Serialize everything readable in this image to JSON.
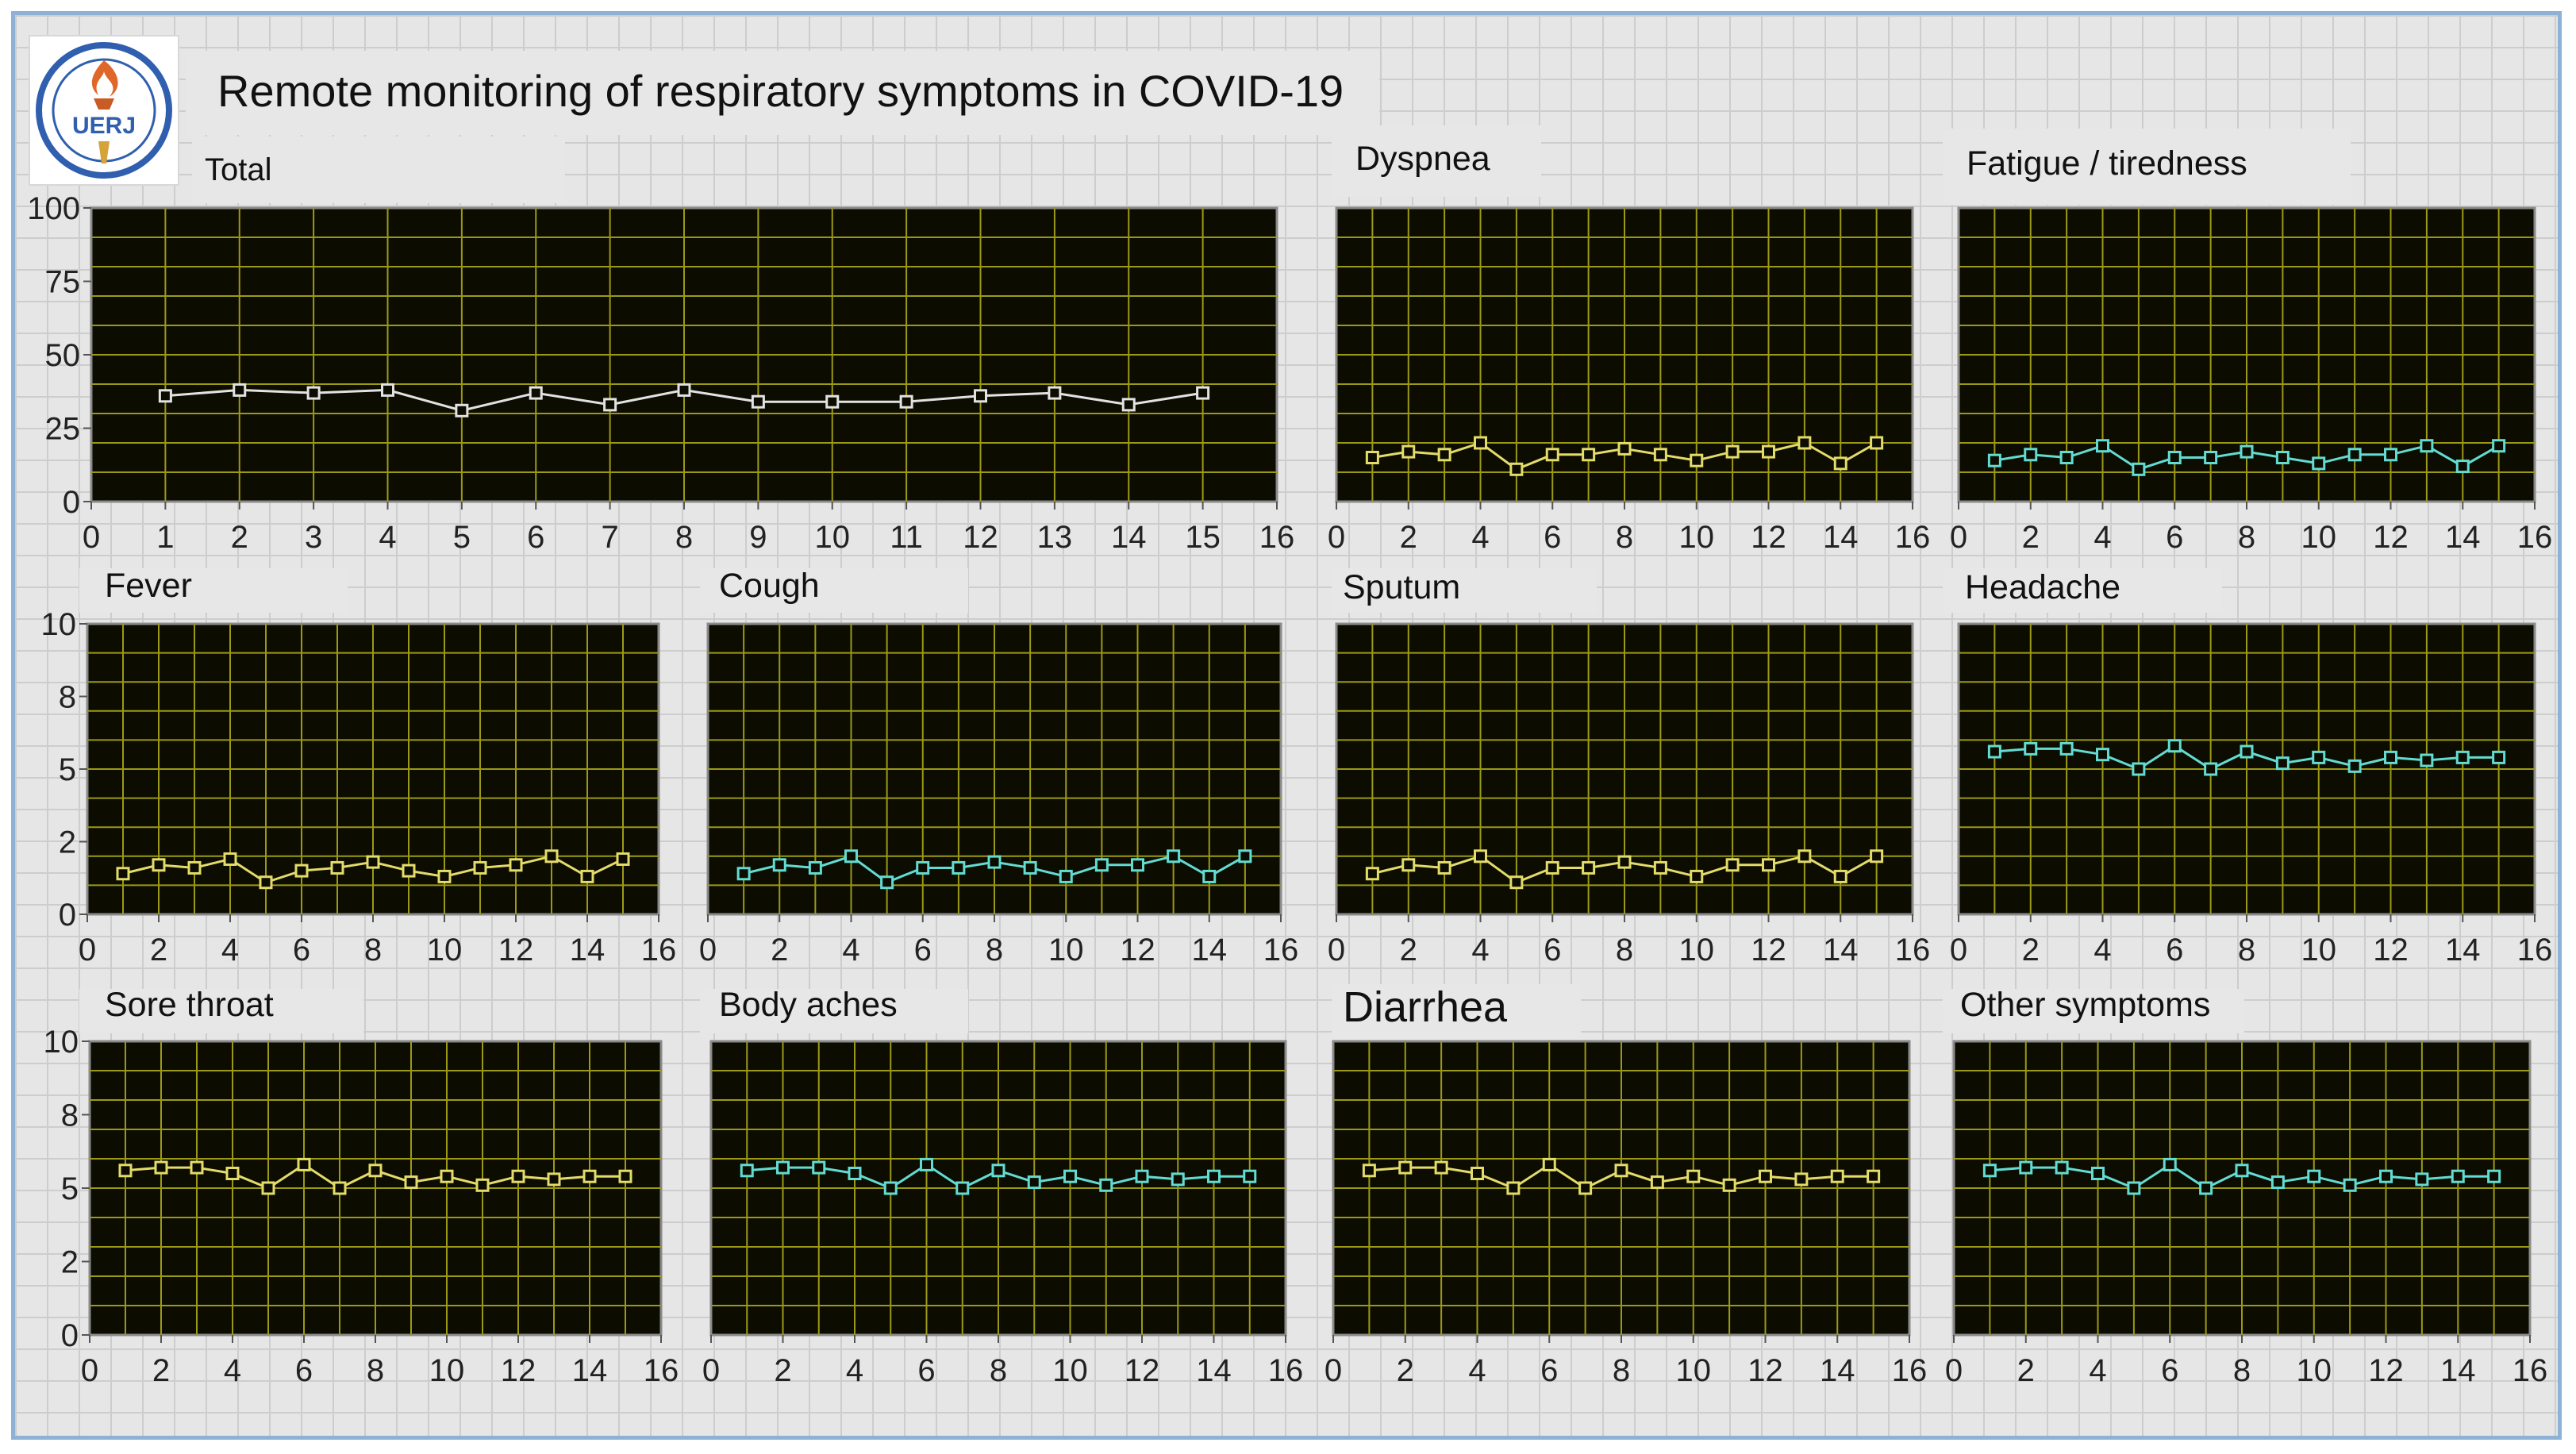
{
  "app": {
    "title": "Remote monitoring of respiratory symptoms in COVID-19"
  },
  "logo": {
    "text": "UERJ"
  },
  "colors": {
    "plot_bg": "#0c0c00",
    "grid": "#9c9a15",
    "frame": "#8a8a8a",
    "white_series": "#e2e2e2",
    "yellow_series": "#e3db6a",
    "cyan_series": "#62dcd2"
  },
  "chart_data": [
    {
      "type": "line",
      "title": "Total",
      "color": "white",
      "x": [
        1,
        2,
        3,
        4,
        5,
        6,
        7,
        8,
        9,
        10,
        11,
        12,
        13,
        14,
        15
      ],
      "values": [
        36,
        38,
        37,
        38,
        31,
        37,
        33,
        38,
        34,
        34,
        34,
        36,
        37,
        33,
        37
      ],
      "xlim": [
        0,
        16
      ],
      "ylim": [
        0,
        100
      ],
      "xticks": [
        "0",
        "1",
        "2",
        "3",
        "4",
        "5",
        "6",
        "7",
        "8",
        "9",
        "10",
        "11",
        "12",
        "13",
        "14",
        "15",
        "16"
      ],
      "yticks": [
        "100",
        "75",
        "50",
        "25",
        "0"
      ]
    },
    {
      "type": "line",
      "title": "Dyspnea",
      "color": "yellow",
      "x": [
        1,
        2,
        3,
        4,
        5,
        6,
        7,
        8,
        9,
        10,
        11,
        12,
        13,
        14,
        15
      ],
      "values": [
        15,
        17,
        16,
        20,
        11,
        16,
        16,
        18,
        16,
        14,
        17,
        17,
        20,
        13,
        20
      ],
      "xlim": [
        0,
        16
      ],
      "ylim": [
        0,
        100
      ],
      "xticks": [
        "0",
        "2",
        "4",
        "6",
        "8",
        "10",
        "12",
        "14",
        "16"
      ],
      "yticks": []
    },
    {
      "type": "line",
      "title": "Fatigue / tiredness",
      "color": "cyan",
      "x": [
        1,
        2,
        3,
        4,
        5,
        6,
        7,
        8,
        9,
        10,
        11,
        12,
        13,
        14,
        15
      ],
      "values": [
        14,
        16,
        15,
        19,
        11,
        15,
        15,
        17,
        15,
        13,
        16,
        16,
        19,
        12,
        19
      ],
      "xlim": [
        0,
        16
      ],
      "ylim": [
        0,
        100
      ],
      "xticks": [
        "0",
        "2",
        "4",
        "6",
        "8",
        "10",
        "12",
        "14",
        "16"
      ],
      "yticks": []
    },
    {
      "type": "line",
      "title": "Fever",
      "color": "yellow",
      "x": [
        1,
        2,
        3,
        4,
        5,
        6,
        7,
        8,
        9,
        10,
        11,
        12,
        13,
        14,
        15
      ],
      "values": [
        1.4,
        1.7,
        1.6,
        1.9,
        1.1,
        1.5,
        1.6,
        1.8,
        1.5,
        1.3,
        1.6,
        1.7,
        2.0,
        1.3,
        1.9
      ],
      "xlim": [
        0,
        16
      ],
      "ylim": [
        0,
        10
      ],
      "xticks": [
        "0",
        "2",
        "4",
        "6",
        "8",
        "10",
        "12",
        "14",
        "16"
      ],
      "yticks": [
        "10",
        "8",
        "5",
        "2",
        "0"
      ]
    },
    {
      "type": "line",
      "title": "Cough",
      "color": "cyan",
      "x": [
        1,
        2,
        3,
        4,
        5,
        6,
        7,
        8,
        9,
        10,
        11,
        12,
        13,
        14,
        15
      ],
      "values": [
        1.4,
        1.7,
        1.6,
        2.0,
        1.1,
        1.6,
        1.6,
        1.8,
        1.6,
        1.3,
        1.7,
        1.7,
        2.0,
        1.3,
        2.0
      ],
      "xlim": [
        0,
        16
      ],
      "ylim": [
        0,
        10
      ],
      "xticks": [
        "0",
        "2",
        "4",
        "6",
        "8",
        "10",
        "12",
        "14",
        "16"
      ],
      "yticks": []
    },
    {
      "type": "line",
      "title": "Sputum",
      "color": "yellow",
      "x": [
        1,
        2,
        3,
        4,
        5,
        6,
        7,
        8,
        9,
        10,
        11,
        12,
        13,
        14,
        15
      ],
      "values": [
        1.4,
        1.7,
        1.6,
        2.0,
        1.1,
        1.6,
        1.6,
        1.8,
        1.6,
        1.3,
        1.7,
        1.7,
        2.0,
        1.3,
        2.0
      ],
      "xlim": [
        0,
        16
      ],
      "ylim": [
        0,
        10
      ],
      "xticks": [
        "0",
        "2",
        "4",
        "6",
        "8",
        "10",
        "12",
        "14",
        "16"
      ],
      "yticks": []
    },
    {
      "type": "line",
      "title": "Headache",
      "color": "cyan",
      "x": [
        1,
        2,
        3,
        4,
        5,
        6,
        7,
        8,
        9,
        10,
        11,
        12,
        13,
        14,
        15
      ],
      "values": [
        5.6,
        5.7,
        5.7,
        5.5,
        5.0,
        5.8,
        5.0,
        5.6,
        5.2,
        5.4,
        5.1,
        5.4,
        5.3,
        5.4,
        5.4
      ],
      "xlim": [
        0,
        16
      ],
      "ylim": [
        0,
        10
      ],
      "xticks": [
        "0",
        "2",
        "4",
        "6",
        "8",
        "10",
        "12",
        "14",
        "16"
      ],
      "yticks": []
    },
    {
      "type": "line",
      "title": "Sore throat",
      "color": "yellow",
      "x": [
        1,
        2,
        3,
        4,
        5,
        6,
        7,
        8,
        9,
        10,
        11,
        12,
        13,
        14,
        15
      ],
      "values": [
        5.6,
        5.7,
        5.7,
        5.5,
        5.0,
        5.8,
        5.0,
        5.6,
        5.2,
        5.4,
        5.1,
        5.4,
        5.3,
        5.4,
        5.4
      ],
      "xlim": [
        0,
        16
      ],
      "ylim": [
        0,
        10
      ],
      "xticks": [
        "0",
        "2",
        "4",
        "6",
        "8",
        "10",
        "12",
        "14",
        "16"
      ],
      "yticks": [
        "10",
        "8",
        "5",
        "2",
        "0"
      ]
    },
    {
      "type": "line",
      "title": "Body aches",
      "color": "cyan",
      "x": [
        1,
        2,
        3,
        4,
        5,
        6,
        7,
        8,
        9,
        10,
        11,
        12,
        13,
        14,
        15
      ],
      "values": [
        5.6,
        5.7,
        5.7,
        5.5,
        5.0,
        5.8,
        5.0,
        5.6,
        5.2,
        5.4,
        5.1,
        5.4,
        5.3,
        5.4,
        5.4
      ],
      "xlim": [
        0,
        16
      ],
      "ylim": [
        0,
        10
      ],
      "xticks": [
        "0",
        "2",
        "4",
        "6",
        "8",
        "10",
        "12",
        "14",
        "16"
      ],
      "yticks": []
    },
    {
      "type": "line",
      "title": "Diarrhea",
      "color": "yellow",
      "x": [
        1,
        2,
        3,
        4,
        5,
        6,
        7,
        8,
        9,
        10,
        11,
        12,
        13,
        14,
        15
      ],
      "values": [
        5.6,
        5.7,
        5.7,
        5.5,
        5.0,
        5.8,
        5.0,
        5.6,
        5.2,
        5.4,
        5.1,
        5.4,
        5.3,
        5.4,
        5.4
      ],
      "xlim": [
        0,
        16
      ],
      "ylim": [
        0,
        10
      ],
      "xticks": [
        "0",
        "2",
        "4",
        "6",
        "8",
        "10",
        "12",
        "14",
        "16"
      ],
      "yticks": []
    },
    {
      "type": "line",
      "title": "Other symptoms",
      "color": "cyan",
      "x": [
        1,
        2,
        3,
        4,
        5,
        6,
        7,
        8,
        9,
        10,
        11,
        12,
        13,
        14,
        15
      ],
      "values": [
        5.6,
        5.7,
        5.7,
        5.5,
        5.0,
        5.8,
        5.0,
        5.6,
        5.2,
        5.4,
        5.1,
        5.4,
        5.3,
        5.4,
        5.4
      ],
      "xlim": [
        0,
        16
      ],
      "ylim": [
        0,
        10
      ],
      "xticks": [
        "0",
        "2",
        "4",
        "6",
        "8",
        "10",
        "12",
        "14",
        "16"
      ],
      "yticks": []
    }
  ]
}
